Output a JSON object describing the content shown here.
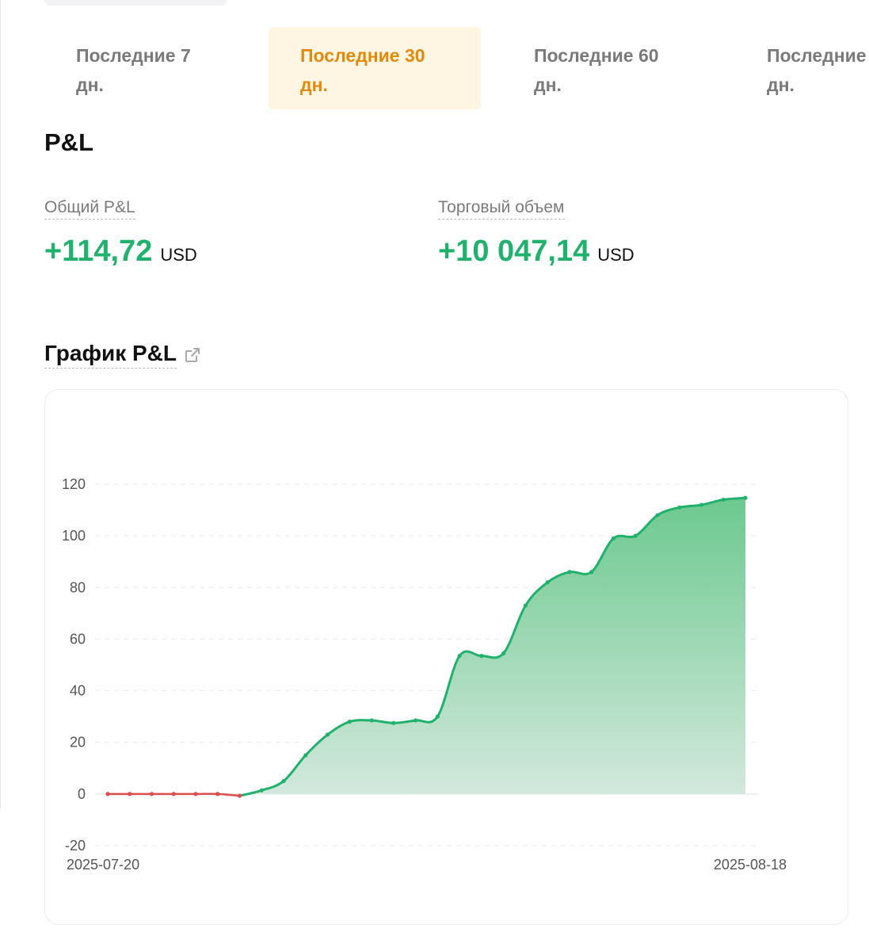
{
  "tabs": [
    {
      "line1": "Последние 7",
      "line2": "дн.",
      "active": false
    },
    {
      "line1": "Последние 30",
      "line2": "дн.",
      "active": true
    },
    {
      "line1": "Последние 60",
      "line2": "дн.",
      "active": false
    },
    {
      "line1": "Последние",
      "line2": "дн.",
      "active": false
    }
  ],
  "pl": {
    "title": "P&L",
    "total_label": "Общий P&L",
    "total_value": "+114,72",
    "total_currency": "USD",
    "volume_label": "Торговый объем",
    "volume_value": "+10 047,14",
    "volume_currency": "USD"
  },
  "chart_heading": "График P&L",
  "icons": {
    "external_link": "external-link-icon"
  },
  "colors": {
    "accent": "#e28a0c",
    "accent_bg": "#fef6e3",
    "positive": "#20b26c",
    "negative": "#e04b4b"
  },
  "chart_data": {
    "type": "area",
    "x_start_label": "2025-07-20",
    "x_end_label": "2025-08-18",
    "y_ticks": [
      120,
      100,
      80,
      60,
      40,
      20,
      0,
      -20
    ],
    "ylim": [
      -20,
      120
    ],
    "grid": true,
    "x": [
      "2025-07-20",
      "2025-07-21",
      "2025-07-22",
      "2025-07-23",
      "2025-07-24",
      "2025-07-25",
      "2025-07-26",
      "2025-07-27",
      "2025-07-28",
      "2025-07-29",
      "2025-07-30",
      "2025-07-31",
      "2025-08-01",
      "2025-08-02",
      "2025-08-03",
      "2025-08-04",
      "2025-08-05",
      "2025-08-06",
      "2025-08-07",
      "2025-08-08",
      "2025-08-09",
      "2025-08-10",
      "2025-08-11",
      "2025-08-12",
      "2025-08-13",
      "2025-08-14",
      "2025-08-15",
      "2025-08-16",
      "2025-08-17",
      "2025-08-18"
    ],
    "values": [
      0,
      0,
      0,
      0,
      0,
      0,
      -0.7,
      1.4,
      5,
      15,
      23,
      28,
      28.5,
      27.5,
      28.5,
      30,
      53.5,
      53.5,
      54.5,
      73,
      82,
      86,
      86,
      99,
      100,
      108,
      111,
      112,
      114,
      114.7
    ]
  }
}
